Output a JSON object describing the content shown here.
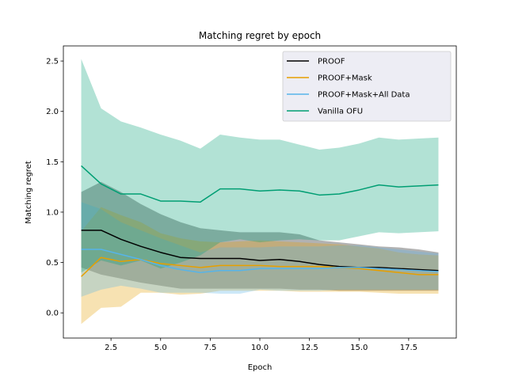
{
  "chart_data": {
    "type": "line",
    "title": "Matching regret by epoch",
    "xlabel": "Epoch",
    "ylabel": "Matching regret",
    "xlim": [
      0.1,
      19.9
    ],
    "ylim": [
      -0.25,
      2.65
    ],
    "xticks": [
      2.5,
      5.0,
      7.5,
      10.0,
      12.5,
      15.0,
      17.5
    ],
    "xtick_labels": [
      "2.5",
      "5.0",
      "7.5",
      "10.0",
      "12.5",
      "15.0",
      "17.5"
    ],
    "yticks": [
      0.0,
      0.5,
      1.0,
      1.5,
      2.0,
      2.5
    ],
    "ytick_labels": [
      "0.0",
      "0.5",
      "1.0",
      "1.5",
      "2.0",
      "2.5"
    ],
    "grid": false,
    "legend_position": "top-right",
    "x": [
      1,
      2,
      3,
      4,
      5,
      6,
      7,
      8,
      9,
      10,
      11,
      12,
      13,
      14,
      15,
      16,
      17,
      18,
      19
    ],
    "series": [
      {
        "name": "PROOF",
        "color": "#000000",
        "band_opacity": 0.3,
        "values": [
          0.82,
          0.82,
          0.73,
          0.66,
          0.6,
          0.55,
          0.54,
          0.54,
          0.54,
          0.52,
          0.53,
          0.51,
          0.48,
          0.46,
          0.45,
          0.45,
          0.44,
          0.43,
          0.42
        ],
        "lower": [
          0.45,
          0.38,
          0.34,
          0.3,
          0.27,
          0.24,
          0.24,
          0.24,
          0.24,
          0.24,
          0.24,
          0.23,
          0.23,
          0.22,
          0.22,
          0.22,
          0.22,
          0.22,
          0.22
        ],
        "upper": [
          1.2,
          1.3,
          1.2,
          1.08,
          0.98,
          0.9,
          0.84,
          0.82,
          0.8,
          0.8,
          0.8,
          0.78,
          0.72,
          0.7,
          0.68,
          0.66,
          0.65,
          0.63,
          0.6
        ]
      },
      {
        "name": "PROOF+Mask",
        "color": "#E69F00",
        "band_opacity": 0.3,
        "values": [
          0.36,
          0.55,
          0.51,
          0.53,
          0.49,
          0.47,
          0.45,
          0.47,
          0.47,
          0.47,
          0.46,
          0.46,
          0.46,
          0.45,
          0.44,
          0.42,
          0.4,
          0.38,
          0.38
        ],
        "lower": [
          -0.11,
          0.05,
          0.06,
          0.2,
          0.2,
          0.18,
          0.19,
          0.22,
          0.22,
          0.22,
          0.22,
          0.21,
          0.21,
          0.21,
          0.21,
          0.2,
          0.19,
          0.19,
          0.19
        ],
        "upper": [
          0.81,
          1.05,
          0.97,
          0.9,
          0.79,
          0.74,
          0.71,
          0.7,
          0.71,
          0.72,
          0.71,
          0.7,
          0.69,
          0.68,
          0.66,
          0.64,
          0.6,
          0.58,
          0.57
        ]
      },
      {
        "name": "PROOF+Mask+All Data",
        "color": "#56B4E9",
        "band_opacity": 0.3,
        "values": [
          0.63,
          0.63,
          0.58,
          0.53,
          0.47,
          0.43,
          0.4,
          0.42,
          0.42,
          0.44,
          0.44,
          0.44,
          0.44,
          0.45,
          0.45,
          0.44,
          0.43,
          0.42,
          0.41
        ],
        "lower": [
          0.16,
          0.23,
          0.27,
          0.24,
          0.2,
          0.2,
          0.2,
          0.19,
          0.19,
          0.23,
          0.22,
          0.22,
          0.22,
          0.23,
          0.23,
          0.23,
          0.23,
          0.23,
          0.23
        ],
        "upper": [
          1.1,
          1.03,
          0.9,
          0.82,
          0.74,
          0.67,
          0.6,
          0.65,
          0.65,
          0.65,
          0.66,
          0.66,
          0.66,
          0.67,
          0.67,
          0.65,
          0.63,
          0.61,
          0.59
        ]
      },
      {
        "name": "Vanilla OFU",
        "color": "#009E73",
        "band_opacity": 0.3,
        "values": [
          1.46,
          1.28,
          1.18,
          1.18,
          1.11,
          1.11,
          1.1,
          1.23,
          1.23,
          1.21,
          1.22,
          1.21,
          1.17,
          1.18,
          1.22,
          1.27,
          1.25,
          1.26,
          1.27
        ],
        "lower": [
          0.4,
          0.52,
          0.47,
          0.52,
          0.44,
          0.5,
          0.57,
          0.7,
          0.73,
          0.7,
          0.72,
          0.73,
          0.72,
          0.72,
          0.76,
          0.8,
          0.79,
          0.8,
          0.81
        ],
        "upper": [
          2.52,
          2.03,
          1.9,
          1.84,
          1.77,
          1.71,
          1.63,
          1.77,
          1.74,
          1.72,
          1.72,
          1.67,
          1.62,
          1.64,
          1.68,
          1.74,
          1.72,
          1.73,
          1.74
        ]
      }
    ]
  }
}
